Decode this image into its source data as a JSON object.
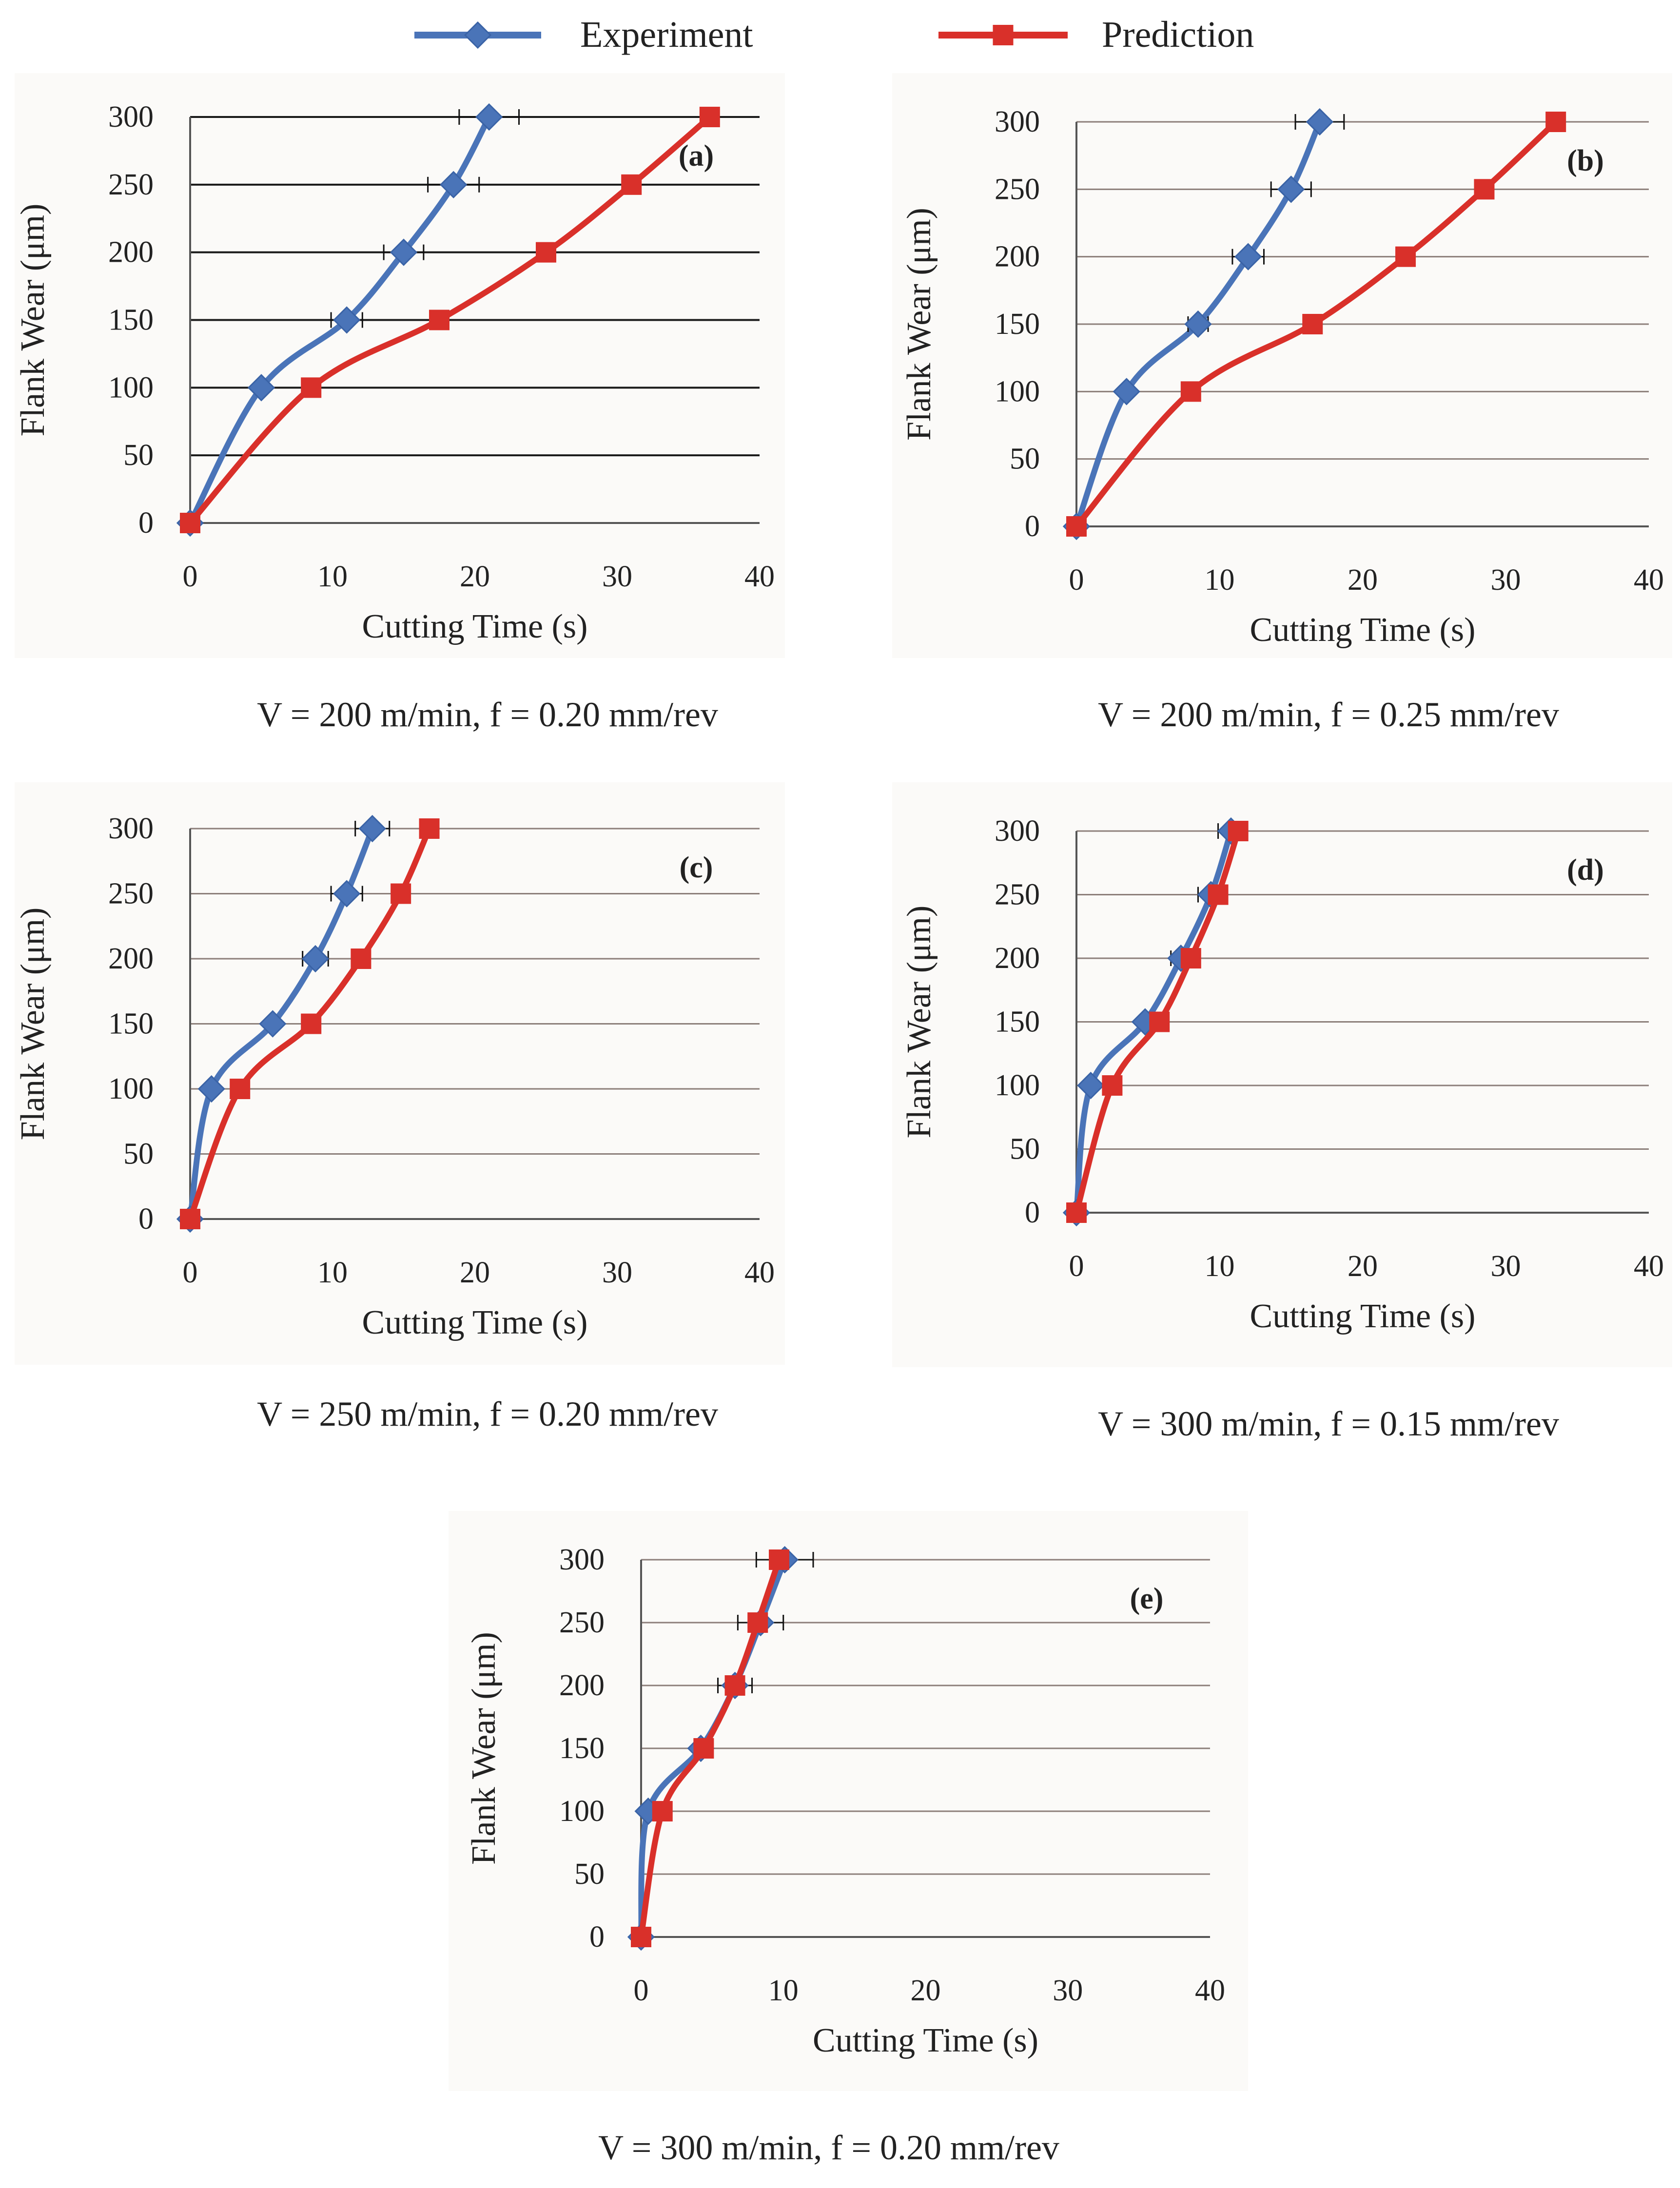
{
  "legend": {
    "items": [
      {
        "name": "Experiment",
        "color": "#4a74b8",
        "marker": "diamond"
      },
      {
        "name": "Prediction",
        "color": "#d9302a",
        "marker": "square"
      }
    ]
  },
  "chart_data": [
    {
      "type": "line",
      "label": "(a)",
      "caption": "V = 200 m/min, f = 0.20 mm/rev",
      "xlabel": "Cutting Time (s)",
      "ylabel": "Flank Wear (μm)",
      "xlim": [
        0,
        40
      ],
      "ylim": [
        0,
        300
      ],
      "xticks": [
        "0",
        "10",
        "20",
        "30",
        "40"
      ],
      "yticks": [
        "0",
        "50",
        "100",
        "150",
        "200",
        "250",
        "300"
      ],
      "series": [
        {
          "name": "Experiment",
          "x": [
            0,
            5,
            11,
            15,
            18.5,
            21
          ],
          "y": [
            0,
            100,
            150,
            200,
            250,
            300
          ],
          "xerr": [
            0,
            0,
            1.1,
            1.4,
            1.8,
            2.1
          ]
        },
        {
          "name": "Prediction",
          "x": [
            0,
            8.5,
            17.5,
            25,
            31,
            36.5
          ],
          "y": [
            0,
            100,
            150,
            200,
            250,
            300
          ]
        }
      ]
    },
    {
      "type": "line",
      "label": "(b)",
      "caption": "V = 200 m/min, f = 0.25 mm/rev",
      "xlabel": "Cutting Time (s)",
      "ylabel": "Flank Wear (μm)",
      "xlim": [
        0,
        40
      ],
      "ylim": [
        0,
        300
      ],
      "xticks": [
        "0",
        "10",
        "20",
        "30",
        "40"
      ],
      "yticks": [
        "0",
        "50",
        "100",
        "150",
        "200",
        "250",
        "300"
      ],
      "series": [
        {
          "name": "Experiment",
          "x": [
            0,
            3.5,
            8.5,
            12,
            15,
            17
          ],
          "y": [
            0,
            100,
            150,
            200,
            250,
            300
          ],
          "xerr": [
            0,
            0,
            0.7,
            1.1,
            1.4,
            1.7
          ]
        },
        {
          "name": "Prediction",
          "x": [
            0,
            8,
            16.5,
            23,
            28.5,
            33.5
          ],
          "y": [
            0,
            100,
            150,
            200,
            250,
            300
          ]
        }
      ]
    },
    {
      "type": "line",
      "label": "(c)",
      "caption": "V = 250 m/min, f = 0.20 mm/rev",
      "xlabel": "Cutting Time (s)",
      "ylabel": "Flank Wear (μm)",
      "xlim": [
        0,
        40
      ],
      "ylim": [
        0,
        300
      ],
      "xticks": [
        "0",
        "10",
        "20",
        "30",
        "40"
      ],
      "yticks": [
        "0",
        "50",
        "100",
        "150",
        "200",
        "250",
        "300"
      ],
      "series": [
        {
          "name": "Experiment",
          "x": [
            0,
            1.5,
            5.8,
            8.8,
            11,
            12.8
          ],
          "y": [
            0,
            100,
            150,
            200,
            250,
            300
          ],
          "xerr": [
            0,
            0,
            0,
            0.9,
            1.1,
            1.2
          ]
        },
        {
          "name": "Prediction",
          "x": [
            0,
            3.5,
            8.5,
            12,
            14.8,
            16.8
          ],
          "y": [
            0,
            100,
            150,
            200,
            250,
            300
          ]
        }
      ]
    },
    {
      "type": "line",
      "label": "(d)",
      "caption": "V = 300 m/min, f = 0.15 mm/rev",
      "xlabel": "Cutting Time (s)",
      "ylabel": "Flank Wear (μm)",
      "xlim": [
        0,
        40
      ],
      "ylim": [
        0,
        300
      ],
      "xticks": [
        "0",
        "10",
        "20",
        "30",
        "40"
      ],
      "yticks": [
        "0",
        "50",
        "100",
        "150",
        "200",
        "250",
        "300"
      ],
      "series": [
        {
          "name": "Experiment",
          "x": [
            0,
            1,
            4.8,
            7.3,
            9.4,
            10.8
          ],
          "y": [
            0,
            100,
            150,
            200,
            250,
            300
          ],
          "xerr": [
            0,
            0,
            0,
            0.7,
            0.9,
            0.9
          ]
        },
        {
          "name": "Prediction",
          "x": [
            0,
            2.5,
            5.8,
            8,
            9.9,
            11.3
          ],
          "y": [
            0,
            100,
            150,
            200,
            250,
            300
          ]
        }
      ]
    },
    {
      "type": "line",
      "label": "(e)",
      "caption": "V = 300 m/min, f = 0.20 mm/rev",
      "xlabel": "Cutting Time (s)",
      "ylabel": "Flank Wear (μm)",
      "xlim": [
        0,
        40
      ],
      "ylim": [
        0,
        300
      ],
      "xticks": [
        "0",
        "10",
        "20",
        "30",
        "40"
      ],
      "yticks": [
        "0",
        "50",
        "100",
        "150",
        "200",
        "250",
        "300"
      ],
      "series": [
        {
          "name": "Experiment",
          "x": [
            0,
            0.5,
            4.2,
            6.6,
            8.4,
            10.1
          ],
          "y": [
            0,
            100,
            150,
            200,
            250,
            300
          ],
          "xerr": [
            0,
            0,
            0,
            1.2,
            1.6,
            2
          ]
        },
        {
          "name": "Prediction",
          "x": [
            0,
            1.5,
            4.4,
            6.6,
            8.2,
            9.7
          ],
          "y": [
            0,
            100,
            150,
            200,
            250,
            300
          ]
        }
      ]
    }
  ]
}
